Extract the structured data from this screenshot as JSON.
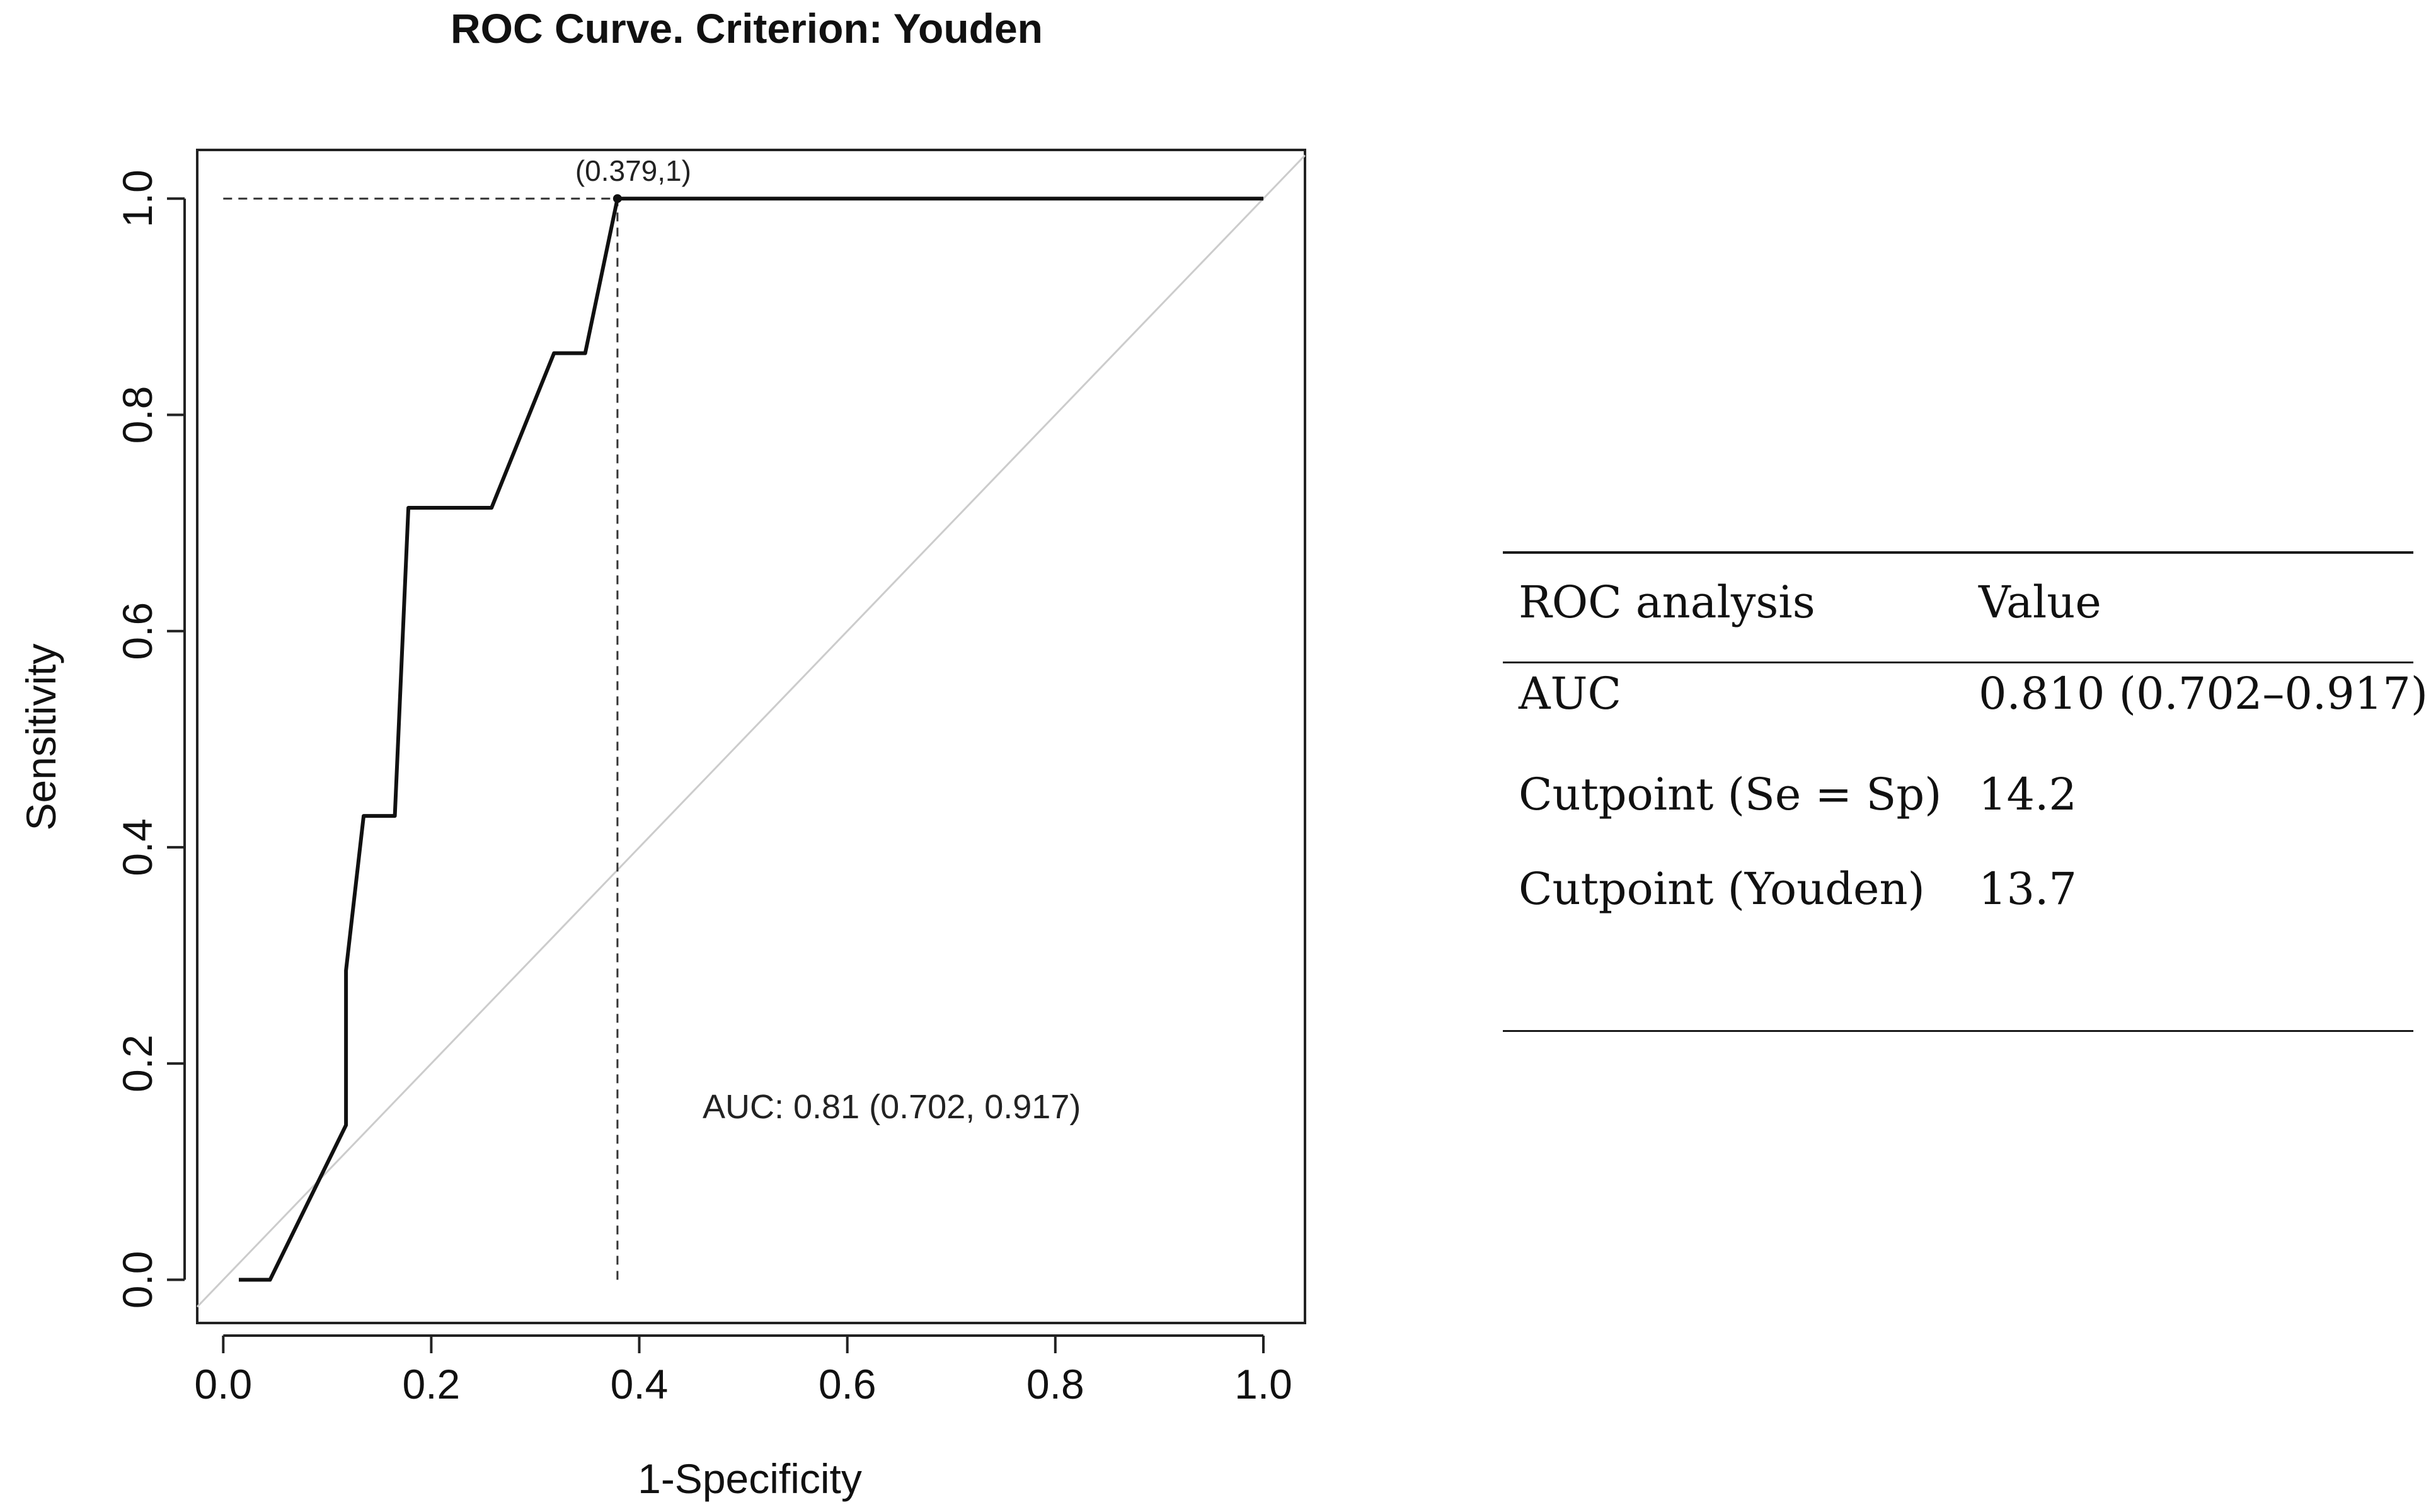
{
  "chart_data": {
    "type": "line",
    "title": "ROC Curve. Criterion: Youden",
    "xlabel": "1-Specificity",
    "ylabel": "Sensitivity",
    "xlim": [
      -0.025,
      1.04
    ],
    "ylim": [
      -0.04,
      1.045
    ],
    "grid": false,
    "xticks": [
      0.0,
      0.2,
      0.4,
      0.6,
      0.8,
      1.0
    ],
    "yticks": [
      0.0,
      0.2,
      0.4,
      0.6,
      0.8,
      1.0
    ],
    "xtick_labels": [
      "0.0",
      "0.2",
      "0.4",
      "0.6",
      "0.8",
      "1.0"
    ],
    "ytick_labels": [
      "0.0",
      "0.2",
      "0.4",
      "0.6",
      "0.8",
      "1.0"
    ],
    "series": [
      {
        "name": "ROC curve",
        "color": "#111111",
        "points": [
          [
            0.015,
            0.0
          ],
          [
            0.045,
            0.0
          ],
          [
            0.118,
            0.143
          ],
          [
            0.118,
            0.286
          ],
          [
            0.135,
            0.429
          ],
          [
            0.165,
            0.429
          ],
          [
            0.178,
            0.714
          ],
          [
            0.258,
            0.714
          ],
          [
            0.318,
            0.857
          ],
          [
            0.348,
            0.857
          ],
          [
            0.379,
            1.0
          ],
          [
            1.0,
            1.0
          ]
        ]
      },
      {
        "name": "Reference line",
        "color": "#cccccc",
        "points": [
          [
            -0.025,
            -0.025
          ],
          [
            1.04,
            1.04
          ]
        ]
      }
    ],
    "cutpoint": {
      "x": 0.379,
      "y": 1.0,
      "label": "(0.379,1)"
    },
    "annotation": "AUC: 0.81 (0.702, 0.917)"
  },
  "table": {
    "headers": [
      "ROC analysis",
      "Value"
    ],
    "rows": [
      [
        "AUC",
        "0.810 (0.702–0.917)"
      ],
      [
        "Cutpoint (Se = Sp)",
        "14.2"
      ],
      [
        "Cutpoint (Youden)",
        "13.7"
      ]
    ]
  }
}
